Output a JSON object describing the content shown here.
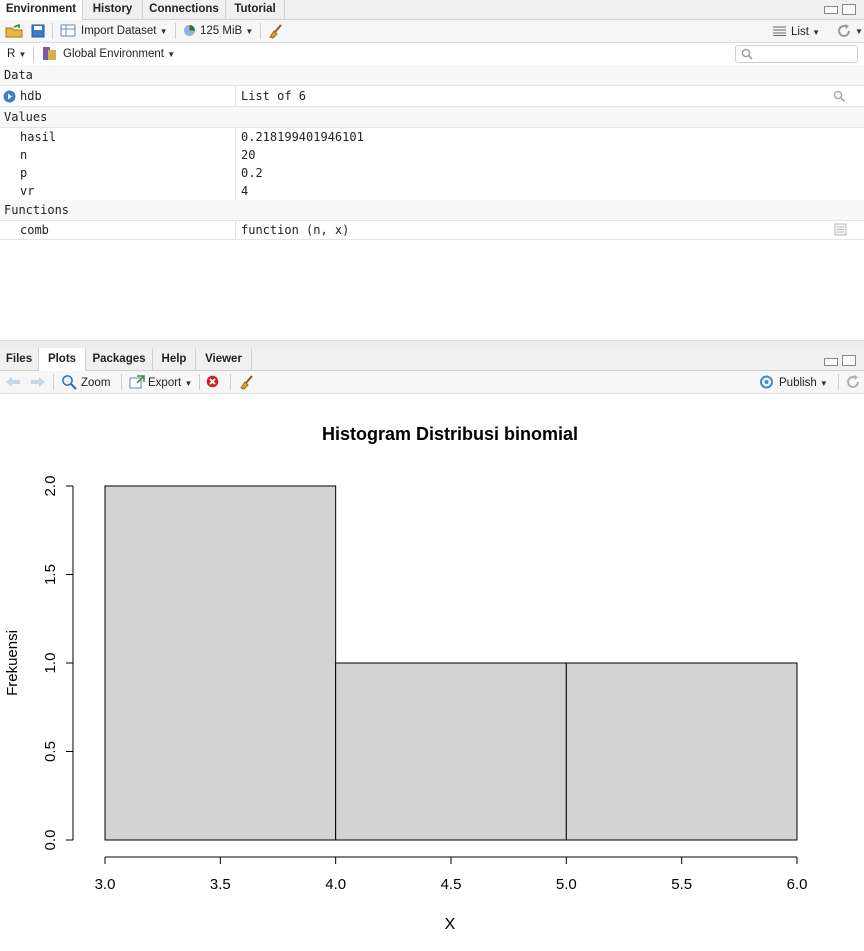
{
  "env_panel": {
    "tabs": [
      "Environment",
      "History",
      "Connections",
      "Tutorial"
    ],
    "toolbar": {
      "import_label": "Import Dataset",
      "memory_label": "125 MiB",
      "view_mode": "List"
    },
    "lang_label": "R",
    "env_label": "Global Environment",
    "search_placeholder": "",
    "sections": {
      "data": "Data",
      "values": "Values",
      "functions": "Functions"
    },
    "data_rows": [
      {
        "name": "hdb",
        "value": "List of  6"
      }
    ],
    "value_rows": [
      {
        "name": "hasil",
        "value": "0.218199401946101"
      },
      {
        "name": "n",
        "value": "20"
      },
      {
        "name": "p",
        "value": "0.2"
      },
      {
        "name": "vr",
        "value": "4"
      }
    ],
    "function_rows": [
      {
        "name": "comb",
        "value": "function (n, x)"
      }
    ]
  },
  "plots_panel": {
    "tabs": [
      "Files",
      "Plots",
      "Packages",
      "Help",
      "Viewer"
    ],
    "toolbar": {
      "zoom_label": "Zoom",
      "export_label": "Export",
      "publish_label": "Publish"
    }
  },
  "chart_data": {
    "type": "bar",
    "title": "Histogram Distribusi binomial",
    "xlabel": "X",
    "ylabel": "Frekuensi",
    "bins": [
      {
        "from": 3,
        "to": 4,
        "count": 2
      },
      {
        "from": 4,
        "to": 5,
        "count": 1
      },
      {
        "from": 5,
        "to": 6,
        "count": 1
      }
    ],
    "xlim": [
      3,
      6
    ],
    "ylim": [
      0,
      2
    ],
    "x_ticks": [
      "3.0",
      "3.5",
      "4.0",
      "4.5",
      "5.0",
      "5.5",
      "6.0"
    ],
    "y_ticks": [
      "0.0",
      "0.5",
      "1.0",
      "1.5",
      "2.0"
    ],
    "bar_color": "#d3d3d3",
    "grid": false
  }
}
